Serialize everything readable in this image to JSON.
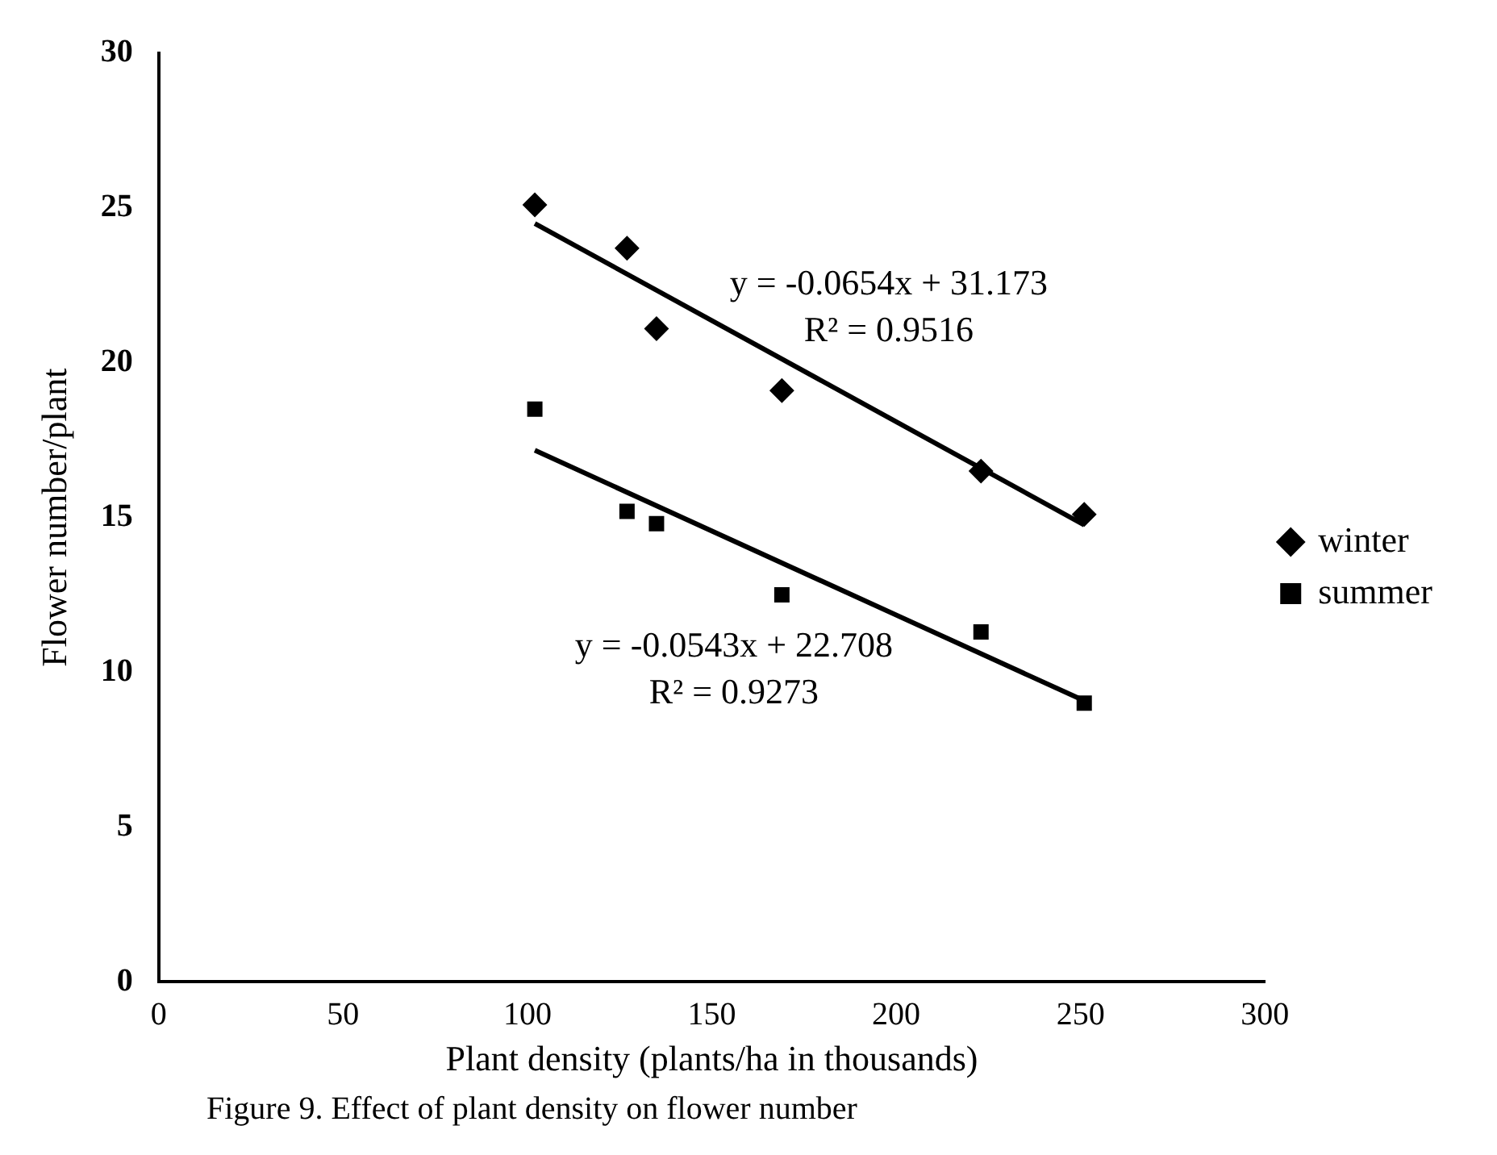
{
  "chart_data": {
    "type": "scatter",
    "xlabel": "Plant density (plants/ha in thousands)",
    "ylabel": "Flower number/plant",
    "xlim": [
      0,
      300
    ],
    "xticks": [
      0,
      50,
      100,
      150,
      200,
      250,
      300
    ],
    "ylim": [
      0,
      30
    ],
    "yticks": [
      0,
      5,
      10,
      15,
      20,
      25,
      30
    ],
    "grid": false,
    "legend": "right",
    "series": [
      {
        "name": "winter",
        "color": "#000000",
        "marker": "diamond",
        "x": [
          102,
          127,
          135,
          169,
          223,
          251
        ],
        "values": [
          25.1,
          23.7,
          21.1,
          19.1,
          16.5,
          15.1
        ]
      },
      {
        "name": "summer",
        "color": "#000000",
        "marker": "square",
        "x": [
          102,
          127,
          135,
          169,
          223,
          251
        ],
        "values": [
          18.5,
          15.2,
          14.8,
          12.5,
          11.3,
          9.0
        ]
      },
      {
        "type": "line",
        "color": "#000000",
        "marker": "none",
        "x": [
          102,
          251
        ],
        "values": [
          24.5,
          14.76
        ]
      },
      {
        "type": "line",
        "color": "#000000",
        "marker": "none",
        "x": [
          102,
          251
        ],
        "values": [
          17.17,
          9.08
        ]
      }
    ],
    "annotations": [
      "y = -0.0654x + 31.173",
      "R² = 0.9516",
      "y = -0.0543x + 22.708",
      "R² = 0.9273",
      "Figure 9. Effect of plant density on flower number"
    ]
  }
}
